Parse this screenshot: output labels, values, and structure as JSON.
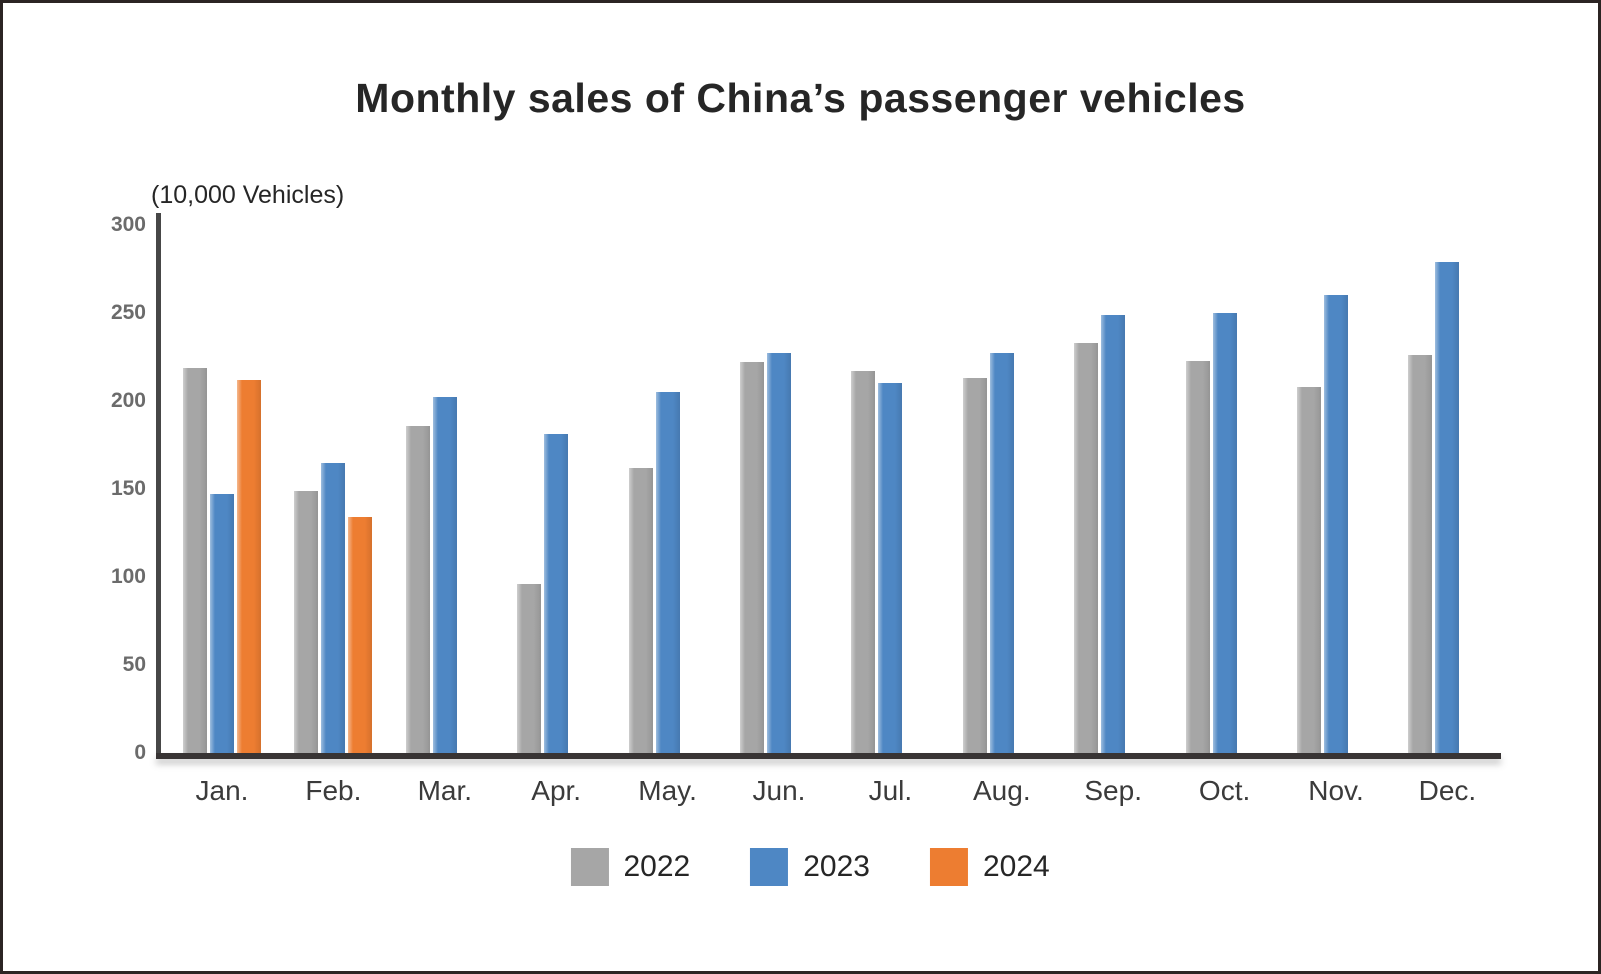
{
  "frame": {
    "border_color": "#2b2423",
    "background": "#ffffff"
  },
  "chart_data": {
    "type": "bar",
    "title": "Monthly sales of China’s passenger vehicles",
    "unit_label": "(10,000 Vehicles)",
    "categories": [
      "Jan.",
      "Feb.",
      "Mar.",
      "Apr.",
      "May.",
      "Jun.",
      "Jul.",
      "Aug.",
      "Sep.",
      "Oct.",
      "Nov.",
      "Dec."
    ],
    "series": [
      {
        "name": "2022",
        "color": "#a6a6a6",
        "values": [
          219,
          149,
          186,
          96,
          162,
          222,
          217,
          213,
          233,
          223,
          208,
          226
        ]
      },
      {
        "name": "2023",
        "color": "#4e87c4",
        "values": [
          147,
          165,
          202,
          181,
          205,
          227,
          210,
          227,
          249,
          250,
          260,
          279
        ]
      },
      {
        "name": "2024",
        "color": "#ed7d31",
        "values": [
          212,
          134,
          null,
          null,
          null,
          null,
          null,
          null,
          null,
          null,
          null,
          null
        ]
      }
    ],
    "ylim": [
      0,
      300
    ],
    "yticks": [
      0,
      50,
      100,
      150,
      200,
      250,
      300
    ],
    "grid": false,
    "legend_position": "bottom",
    "axis_color": "#3b3b3b"
  }
}
